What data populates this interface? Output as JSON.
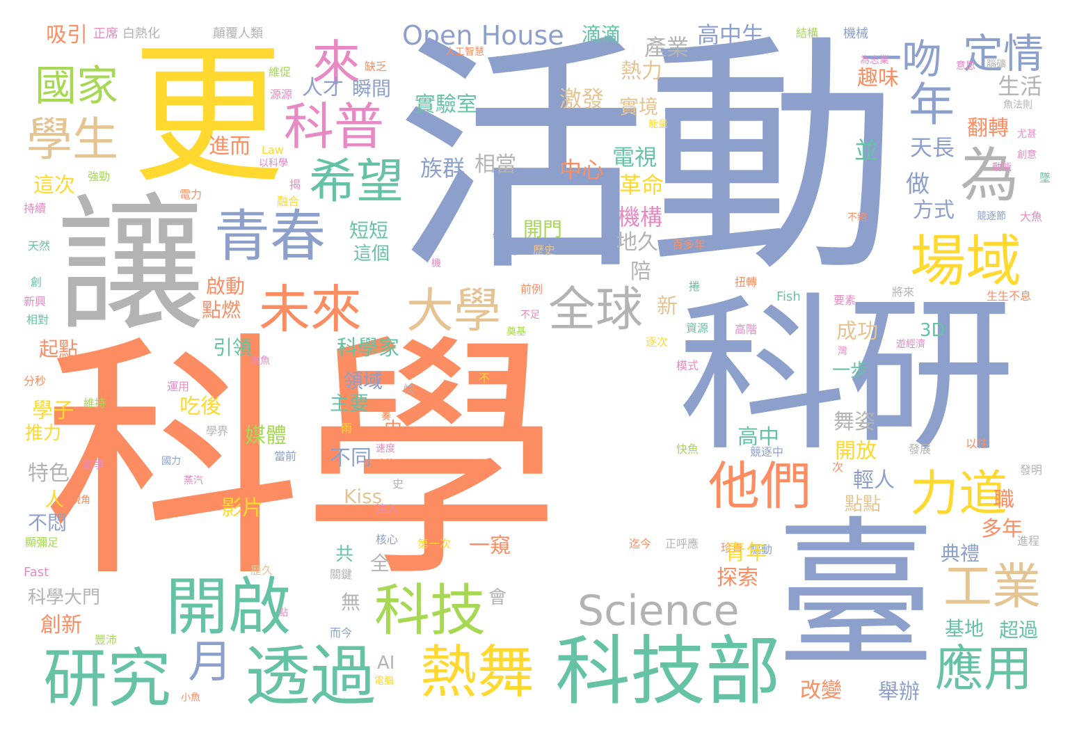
{
  "words": [
    {
      "text": "科學",
      "color": "#fc8d62"
    },
    {
      "text": "活動",
      "color": "#8da0cb"
    },
    {
      "text": "讓",
      "color": "#b3b3b3"
    },
    {
      "text": "更",
      "color": "#ffd92f"
    },
    {
      "text": "科研",
      "color": "#8da0cb"
    },
    {
      "text": "臺",
      "color": "#8da0cb"
    },
    {
      "text": "科技部",
      "color": "#66c2a5"
    },
    {
      "text": "開啟",
      "color": "#66c2a5"
    },
    {
      "text": "研究",
      "color": "#66c2a5"
    },
    {
      "text": "透過",
      "color": "#66c2a5"
    },
    {
      "text": "熱舞",
      "color": "#ffd92f"
    },
    {
      "text": "科技",
      "color": "#a6d854"
    },
    {
      "text": "Science",
      "color": "#b3b3b3"
    },
    {
      "text": "青春",
      "color": "#8da0cb"
    },
    {
      "text": "未來",
      "color": "#fc8d62"
    },
    {
      "text": "大學",
      "color": "#e5c494"
    },
    {
      "text": "全球",
      "color": "#b3b3b3"
    },
    {
      "text": "他們",
      "color": "#fc8d62"
    },
    {
      "text": "力道",
      "color": "#ffd92f"
    },
    {
      "text": "場域",
      "color": "#ffd92f"
    },
    {
      "text": "工業",
      "color": "#e5c494"
    },
    {
      "text": "應用",
      "color": "#66c2a5"
    },
    {
      "text": "希望",
      "color": "#66c2a5"
    },
    {
      "text": "科普",
      "color": "#e78ac3"
    },
    {
      "text": "來",
      "color": "#e78ac3"
    },
    {
      "text": "國家",
      "color": "#a6d854"
    },
    {
      "text": "學生",
      "color": "#e5c494"
    },
    {
      "text": "一吻",
      "color": "#8da0cb"
    },
    {
      "text": "定情",
      "color": "#8da0cb"
    },
    {
      "text": "年",
      "color": "#8da0cb"
    },
    {
      "text": "為",
      "color": "#b3b3b3"
    },
    {
      "text": "月",
      "color": "#8da0cb"
    },
    {
      "text": "Open House",
      "color": "#8da0cb"
    },
    {
      "text": "滴滴",
      "color": "#66c2a5"
    },
    {
      "text": "產業",
      "color": "#b3b3b3"
    },
    {
      "text": "高中生",
      "color": "#8da0cb"
    },
    {
      "text": "吸引",
      "color": "#fc8d62"
    },
    {
      "text": "正席",
      "color": "#e78ac3"
    },
    {
      "text": "白熱化",
      "color": "#b3b3b3"
    },
    {
      "text": "顛覆人類",
      "color": "#b3b3b3"
    },
    {
      "text": "結構",
      "color": "#a6d854"
    },
    {
      "text": "機械",
      "color": "#8da0cb"
    },
    {
      "text": "人工智慧",
      "color": "#fc8d62"
    },
    {
      "text": "為志業",
      "color": "#e78ac3"
    },
    {
      "text": "意思",
      "color": "#e78ac3"
    },
    {
      "text": "腦礦",
      "color": "#b3b3b3"
    },
    {
      "text": "魚法則",
      "color": "#b3b3b3"
    },
    {
      "text": "能量",
      "color": "#ffd92f"
    },
    {
      "text": "尤甚",
      "color": "#e78ac3"
    },
    {
      "text": "創意",
      "color": "#e78ac3"
    },
    {
      "text": "熱力",
      "color": "#e5c494"
    },
    {
      "text": "趣味",
      "color": "#fc8d62"
    },
    {
      "text": "實驗室",
      "color": "#66c2a5"
    },
    {
      "text": "激發",
      "color": "#e5c494"
    },
    {
      "text": "實境",
      "color": "#e5c494"
    },
    {
      "text": "人才",
      "color": "#8da0cb"
    },
    {
      "text": "瞬間",
      "color": "#8da0cb"
    },
    {
      "text": "缺乏",
      "color": "#fc8d62"
    },
    {
      "text": "維促",
      "color": "#a6d854"
    },
    {
      "text": "源源",
      "color": "#e78ac3"
    },
    {
      "text": "生活",
      "color": "#b3b3b3"
    },
    {
      "text": "翻轉",
      "color": "#fc8d62"
    },
    {
      "text": "並",
      "color": "#66c2a5"
    },
    {
      "text": "天長",
      "color": "#8da0cb"
    },
    {
      "text": "做",
      "color": "#8da0cb"
    },
    {
      "text": "方式",
      "color": "#8da0cb"
    },
    {
      "text": "進而",
      "color": "#fc8d62"
    },
    {
      "text": "Law",
      "color": "#ffd92f"
    },
    {
      "text": "以科學",
      "color": "#e78ac3"
    },
    {
      "text": "強勁",
      "color": "#a6d854"
    },
    {
      "text": "這次",
      "color": "#ffd92f"
    },
    {
      "text": "電力",
      "color": "#fc8d62"
    },
    {
      "text": "揭",
      "color": "#e78ac3"
    },
    {
      "text": "融合",
      "color": "#ffd92f"
    },
    {
      "text": "持續",
      "color": "#e78ac3"
    },
    {
      "text": "族群",
      "color": "#8da0cb"
    },
    {
      "text": "相當",
      "color": "#b3b3b3"
    },
    {
      "text": "電視",
      "color": "#66c2a5"
    },
    {
      "text": "中心",
      "color": "#fc8d62"
    },
    {
      "text": "革命",
      "color": "#ffd92f"
    },
    {
      "text": "機構",
      "color": "#e78ac3"
    },
    {
      "text": "地久",
      "color": "#b3b3b3"
    },
    {
      "text": "陪",
      "color": "#b3b3b3"
    },
    {
      "text": "短短",
      "color": "#66c2a5"
    },
    {
      "text": "這個",
      "color": "#66c2a5"
    },
    {
      "text": "開門",
      "color": "#a6d854"
    },
    {
      "text": "必甲",
      "color": "#8da0cb"
    },
    {
      "text": "若能",
      "color": "#8da0cb"
    },
    {
      "text": "歷史",
      "color": "#e5c494"
    },
    {
      "text": "百多年",
      "color": "#fc8d62"
    },
    {
      "text": "天然",
      "color": "#66c2a5"
    },
    {
      "text": "機",
      "color": "#e78ac3"
    },
    {
      "text": "創",
      "color": "#66c2a5"
    },
    {
      "text": "新興",
      "color": "#e78ac3"
    },
    {
      "text": "相對",
      "color": "#66c2a5"
    },
    {
      "text": "啟動",
      "color": "#fc8d62"
    },
    {
      "text": "點燃",
      "color": "#fc8d62"
    },
    {
      "text": "新",
      "color": "#e5c494"
    },
    {
      "text": "前例",
      "color": "#fc8d62"
    },
    {
      "text": "不足",
      "color": "#e78ac3"
    },
    {
      "text": "奠基",
      "color": "#a6d854"
    },
    {
      "text": "捲",
      "color": "#66c2a5"
    },
    {
      "text": "扭轉",
      "color": "#fc8d62"
    },
    {
      "text": "Fish",
      "color": "#66c2a5"
    },
    {
      "text": "要素",
      "color": "#e78ac3"
    },
    {
      "text": "將來",
      "color": "#b3b3b3"
    },
    {
      "text": "生生不息",
      "color": "#fc8d62"
    },
    {
      "text": "起點",
      "color": "#fc8d62"
    },
    {
      "text": "引領",
      "color": "#66c2a5"
    },
    {
      "text": "科學家",
      "color": "#66c2a5"
    },
    {
      "text": "慢魚",
      "color": "#e78ac3"
    },
    {
      "text": "逐次",
      "color": "#ffd92f"
    },
    {
      "text": "資源",
      "color": "#66c2a5"
    },
    {
      "text": "高階",
      "color": "#e78ac3"
    },
    {
      "text": "成功",
      "color": "#e5c494"
    },
    {
      "text": "3D",
      "color": "#66c2a5"
    },
    {
      "text": "模式",
      "color": "#e78ac3"
    },
    {
      "text": "分秒",
      "color": "#fc8d62"
    },
    {
      "text": "領域",
      "color": "#8da0cb"
    },
    {
      "text": "主要",
      "color": "#66c2a5"
    },
    {
      "text": "一步",
      "color": "#66c2a5"
    },
    {
      "text": "運用",
      "color": "#e78ac3"
    },
    {
      "text": "維持",
      "color": "#a6d854"
    },
    {
      "text": "不",
      "color": "#ffd92f"
    },
    {
      "text": "快",
      "color": "#b3b3b3"
    },
    {
      "text": "學子",
      "color": "#ffd92f"
    },
    {
      "text": "吃後",
      "color": "#ffd92f"
    },
    {
      "text": "推力",
      "color": "#ffd92f"
    },
    {
      "text": "中",
      "color": "#fc8d62"
    },
    {
      "text": "學界",
      "color": "#b3b3b3"
    },
    {
      "text": "媒體",
      "color": "#a6d854"
    },
    {
      "text": "舞姿",
      "color": "#b3b3b3"
    },
    {
      "text": "高中",
      "color": "#66c2a5"
    },
    {
      "text": "以往",
      "color": "#fc8d62"
    },
    {
      "text": "激爭",
      "color": "#e78ac3"
    },
    {
      "text": "國力",
      "color": "#8da0cb"
    },
    {
      "text": "當前",
      "color": "#8da0cb"
    },
    {
      "text": "速度",
      "color": "#e78ac3"
    },
    {
      "text": "才能",
      "color": "#fc8d62"
    },
    {
      "text": "不同",
      "color": "#8da0cb"
    },
    {
      "text": "快魚",
      "color": "#a6d854"
    },
    {
      "text": "競逐中",
      "color": "#8da0cb"
    },
    {
      "text": "開放",
      "color": "#ffd92f"
    },
    {
      "text": "發展",
      "color": "#b3b3b3"
    },
    {
      "text": "特色",
      "color": "#b3b3b3"
    },
    {
      "text": "蒸汽",
      "color": "#e78ac3"
    },
    {
      "text": "Kiss",
      "color": "#e5c494"
    },
    {
      "text": "史",
      "color": "#b3b3b3"
    },
    {
      "text": "輕人",
      "color": "#8da0cb"
    },
    {
      "text": "點點",
      "color": "#e5c494"
    },
    {
      "text": "次",
      "color": "#fc8d62"
    },
    {
      "text": "發明",
      "color": "#b3b3b3"
    },
    {
      "text": "人",
      "color": "#ffd92f"
    },
    {
      "text": "視角",
      "color": "#fc8d62"
    },
    {
      "text": "影片",
      "color": "#ffd92f"
    },
    {
      "text": "注入",
      "color": "#e78ac3"
    },
    {
      "text": "職",
      "color": "#fc8d62"
    },
    {
      "text": "不悶",
      "color": "#8da0cb"
    },
    {
      "text": "多年",
      "color": "#fc8d62"
    },
    {
      "text": "第一次",
      "color": "#ffd92f"
    },
    {
      "text": "一窺",
      "color": "#fc8d62"
    },
    {
      "text": "迄今",
      "color": "#fc8d62"
    },
    {
      "text": "正呼應",
      "color": "#b3b3b3"
    },
    {
      "text": "珍貴",
      "color": "#fc8d62"
    },
    {
      "text": "驅動",
      "color": "#8da0cb"
    },
    {
      "text": "進程",
      "color": "#b3b3b3"
    },
    {
      "text": "顯彌足",
      "color": "#a6d854"
    },
    {
      "text": "核心",
      "color": "#8da0cb"
    },
    {
      "text": "共",
      "color": "#66c2a5"
    },
    {
      "text": "全",
      "color": "#b3b3b3"
    },
    {
      "text": "青年",
      "color": "#ffd92f"
    },
    {
      "text": "典禮",
      "color": "#8da0cb"
    },
    {
      "text": "Fast",
      "color": "#e78ac3"
    },
    {
      "text": "歷久",
      "color": "#e5c494"
    },
    {
      "text": "關鍵",
      "color": "#b3b3b3"
    },
    {
      "text": "探索",
      "color": "#fc8d62"
    },
    {
      "text": "科學大門",
      "color": "#b3b3b3"
    },
    {
      "text": "無",
      "color": "#b3b3b3"
    },
    {
      "text": "會",
      "color": "#b3b3b3"
    },
    {
      "text": "點",
      "color": "#e78ac3"
    },
    {
      "text": "創新",
      "color": "#fc8d62"
    },
    {
      "text": "豐沛",
      "color": "#a6d854"
    },
    {
      "text": "而今",
      "color": "#8da0cb"
    },
    {
      "text": "基地",
      "color": "#66c2a5"
    },
    {
      "text": "超過",
      "color": "#66c2a5"
    },
    {
      "text": "AI",
      "color": "#b3b3b3"
    },
    {
      "text": "電腦",
      "color": "#ffd92f"
    },
    {
      "text": "改變",
      "color": "#fc8d62"
    },
    {
      "text": "舉辦",
      "color": "#8da0cb"
    },
    {
      "text": "小魚",
      "color": "#fc8d62"
    },
    {
      "text": "大魚",
      "color": "#e78ac3"
    },
    {
      "text": "競逐節",
      "color": "#8da0cb"
    },
    {
      "text": "不絕",
      "color": "#fc8d62"
    },
    {
      "text": "動能",
      "color": "#e78ac3"
    },
    {
      "text": "墜",
      "color": "#66c2a5"
    },
    {
      "text": "遊經濟",
      "color": "#e78ac3"
    },
    {
      "text": "灣",
      "color": "#e78ac3"
    },
    {
      "text": "奏",
      "color": "#fc8d62"
    },
    {
      "text": "雨",
      "color": "#ffd92f"
    }
  ]
}
